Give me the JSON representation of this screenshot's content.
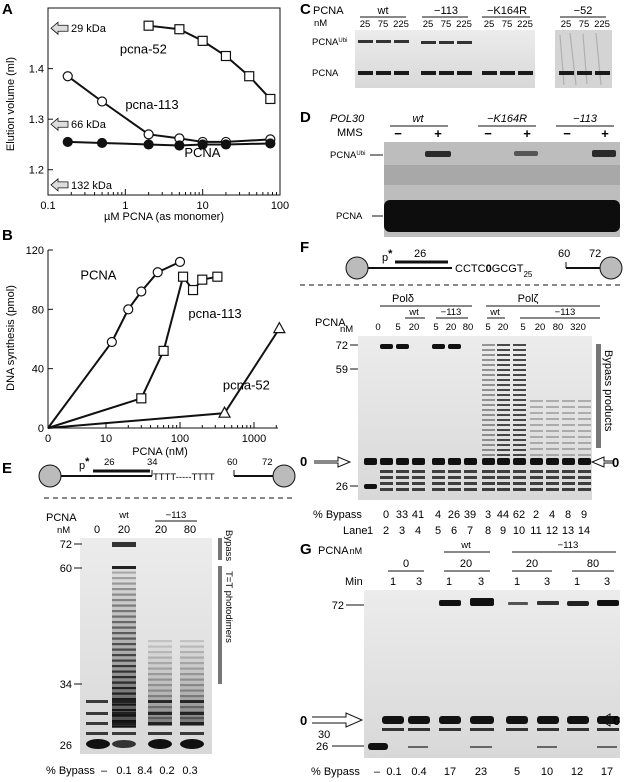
{
  "panels": {
    "A": "A",
    "B": "B",
    "C": "C",
    "D": "D",
    "E": "E",
    "F": "F",
    "G": "G"
  },
  "chart_data": [
    {
      "panel": "A",
      "type": "line",
      "xlabel": "µM PCNA (as monomer)",
      "ylabel": "Elution volume (ml)",
      "xscale": "log",
      "xlim": [
        0.1,
        100
      ],
      "ylim": [
        1.15,
        1.52
      ],
      "xticks": [
        {
          "value": 0.1,
          "label": "0.1"
        },
        {
          "value": 1,
          "label": "1"
        },
        {
          "value": 10,
          "label": "10"
        },
        {
          "value": 100,
          "label": "100"
        }
      ],
      "yticks": [
        {
          "value": 1.2,
          "label": "1.2"
        },
        {
          "value": 1.3,
          "label": "1.3"
        },
        {
          "value": 1.4,
          "label": "1.4"
        }
      ],
      "markers": [
        {
          "label": "29 kDa",
          "y": 1.48
        },
        {
          "label": "66 kDa",
          "y": 1.29
        },
        {
          "label": "132 kDa",
          "y": 1.17
        }
      ],
      "series": [
        {
          "name": "pcna-52",
          "marker": "square",
          "x": [
            2,
            5,
            10,
            20,
            40,
            75
          ],
          "y": [
            1.485,
            1.478,
            1.455,
            1.425,
            1.385,
            1.34
          ]
        },
        {
          "name": "pcna-113",
          "marker": "circle",
          "x": [
            0.18,
            0.5,
            2,
            5,
            10,
            20,
            75
          ],
          "y": [
            1.385,
            1.335,
            1.27,
            1.262,
            1.255,
            1.255,
            1.26
          ]
        },
        {
          "name": "PCNA",
          "marker": "filled-circle",
          "x": [
            0.18,
            0.5,
            2,
            5,
            10,
            20,
            75
          ],
          "y": [
            1.255,
            1.253,
            1.25,
            1.248,
            1.25,
            1.25,
            1.252
          ]
        }
      ]
    },
    {
      "panel": "B",
      "type": "line",
      "xlabel": "PCNA (nM)",
      "ylabel": "DNA synthesis (pmol)",
      "xscale": "log-with-zero",
      "xlim": [
        0,
        3000
      ],
      "ylim": [
        0,
        120
      ],
      "xticks": [
        {
          "value": 0,
          "label": "0"
        },
        {
          "value": 10,
          "label": "10"
        },
        {
          "value": 100,
          "label": "100"
        },
        {
          "value": 1000,
          "label": "1000"
        }
      ],
      "yticks": [
        {
          "value": 0,
          "label": "0"
        },
        {
          "value": 40,
          "label": "40"
        },
        {
          "value": 80,
          "label": "80"
        },
        {
          "value": 120,
          "label": "120"
        }
      ],
      "series": [
        {
          "name": "PCNA",
          "marker": "circle",
          "x": [
            0,
            12,
            20,
            30,
            50,
            100
          ],
          "y": [
            0,
            58,
            80,
            92,
            105,
            112
          ]
        },
        {
          "name": "pcna-113",
          "marker": "square",
          "x": [
            0,
            30,
            60,
            110,
            150,
            200,
            320
          ],
          "y": [
            0,
            20,
            52,
            102,
            93,
            100,
            102
          ]
        },
        {
          "name": "pcna-52",
          "marker": "triangle",
          "x": [
            0,
            400,
            2200
          ],
          "y": [
            0,
            10,
            67
          ]
        }
      ]
    }
  ],
  "panelC": {
    "title": "PCNA",
    "unit": "nM",
    "groups": [
      {
        "label": "wt",
        "lanes": [
          "25",
          "75",
          "225"
        ]
      },
      {
        "label": "−113",
        "lanes": [
          "25",
          "75",
          "225"
        ]
      },
      {
        "label": "−K164R",
        "lanes": [
          "25",
          "75",
          "225"
        ]
      },
      {
        "label": "−52",
        "lanes": [
          "25",
          "75",
          "225"
        ]
      }
    ],
    "row_labels": [
      "PCNA",
      "Ubi",
      "PCNA"
    ]
  },
  "panelD": {
    "gene": "POL30",
    "treatment": "MMS",
    "groups": [
      {
        "label": "wt",
        "signs": [
          "−",
          "+"
        ]
      },
      {
        "label": "−K164R",
        "signs": [
          "−",
          "+"
        ]
      },
      {
        "label": "−113",
        "signs": [
          "−",
          "+"
        ]
      }
    ],
    "row_labels": [
      "PCNA",
      "Ubi",
      "PCNA"
    ]
  },
  "panelE": {
    "substrate": {
      "primer": "p",
      "star": "*",
      "n1": "26",
      "n2": "34",
      "seq": "TTTT-----TTTT",
      "n3": "60",
      "n4": "72"
    },
    "header": "PCNA",
    "unit": "nM",
    "group_wt": "wt",
    "group_113": "−113",
    "lanes": [
      "0",
      "20",
      "20",
      "80"
    ],
    "size_markers": [
      "72",
      "60",
      "34",
      "26"
    ],
    "side_labels": [
      "Bypass",
      "T=T photodimers"
    ],
    "bypass_label": "% Bypass",
    "bypass": [
      "–",
      "0.1",
      "8.4",
      "0.2",
      "0.3"
    ]
  },
  "panelF": {
    "substrate": {
      "primer": "p",
      "star": "*",
      "n1": "26",
      "seq_a": "CCTC",
      "seq_bold": "0",
      "seq_b": "GCGT",
      "sub": "25",
      "n3": "60",
      "n4": "72"
    },
    "pols": [
      "Polδ",
      "Polζ"
    ],
    "header": "PCNA",
    "unit": "nM",
    "group_wt": "wt",
    "group_113": "−113",
    "lanes_pold": [
      "0",
      "5",
      "20",
      "5",
      "20",
      "80"
    ],
    "lanes_polz": [
      "5",
      "20",
      "5",
      "20",
      "80",
      "320"
    ],
    "size_markers": [
      "72",
      "59",
      "26"
    ],
    "lesion_mark": "0",
    "side_label": "Bypass products",
    "bypass_label": "% Bypass",
    "bypass": [
      "0",
      "33",
      "41",
      "4",
      "26",
      "39",
      "3",
      "44",
      "62",
      "2",
      "4",
      "8",
      "9"
    ],
    "lane_label": "Lane",
    "lanes_num": [
      "1",
      "2",
      "3",
      "4",
      "5",
      "6",
      "7",
      "8",
      "9",
      "10",
      "11",
      "12",
      "13",
      "14"
    ]
  },
  "panelG": {
    "header": "PCNA",
    "unit": "nM",
    "min_label": "Min",
    "groups": [
      {
        "label": "0",
        "mins": [
          "1",
          "3"
        ]
      },
      {
        "label": "wt",
        "sub": "20",
        "mins": [
          "1",
          "3"
        ]
      },
      {
        "label": "−113",
        "subs": [
          "20",
          "80"
        ],
        "mins": [
          "1",
          "3",
          "1",
          "3"
        ]
      }
    ],
    "size_markers": [
      "72",
      "30",
      "26"
    ],
    "lesion_mark": "0",
    "bypass_label": "% Bypass",
    "bypass": [
      "–",
      "0.1",
      "0.4",
      "17",
      "23",
      "5",
      "10",
      "12",
      "17"
    ]
  }
}
